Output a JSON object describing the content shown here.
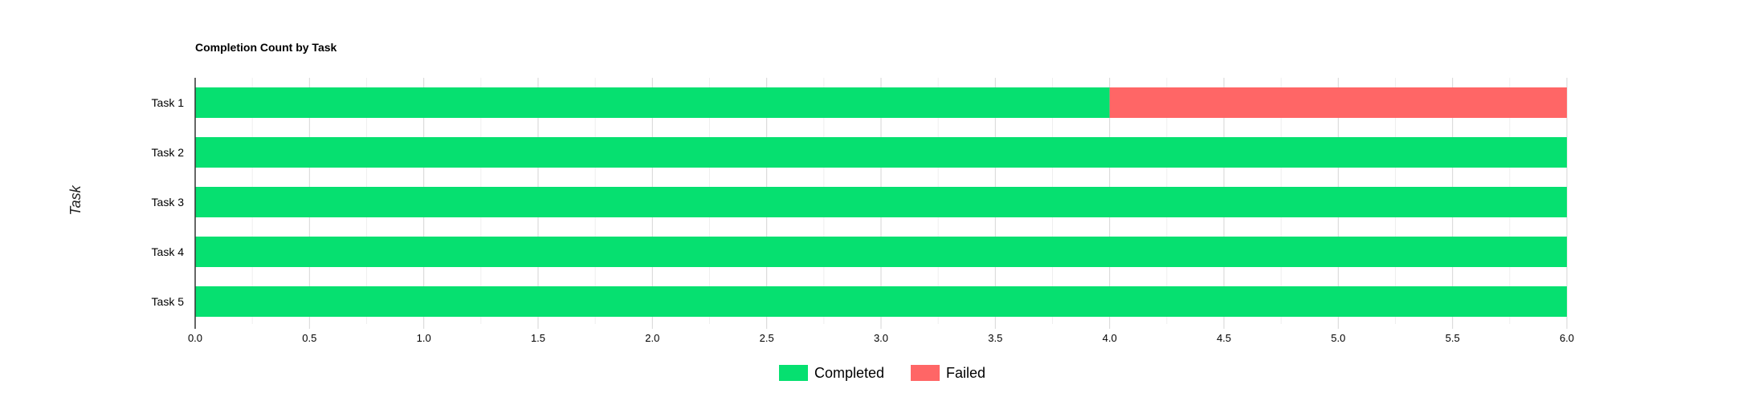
{
  "chart_data": {
    "type": "bar",
    "orientation": "horizontal",
    "stacked": true,
    "title": "Completion Count by Task",
    "xlabel": "",
    "ylabel": "Task",
    "categories": [
      "Task 1",
      "Task 2",
      "Task 3",
      "Task 4",
      "Task 5"
    ],
    "series": [
      {
        "name": "Completed",
        "color": "#06E070",
        "values": [
          4,
          6,
          6,
          6,
          6
        ]
      },
      {
        "name": "Failed",
        "color": "#FF6666",
        "values": [
          2,
          0,
          0,
          0,
          0
        ]
      }
    ],
    "xlim": [
      0,
      6
    ],
    "xticks": [
      0,
      0.5,
      1,
      1.5,
      2,
      2.5,
      3,
      3.5,
      4,
      4.5,
      5,
      5.5,
      6
    ],
    "xtick_labels": [
      "0.0",
      "0.5",
      "1.0",
      "1.5",
      "2.0",
      "2.5",
      "3.0",
      "3.5",
      "4.0",
      "4.5",
      "5.0",
      "5.5",
      "6.0"
    ],
    "grid": true,
    "legend": "bottom-center"
  }
}
